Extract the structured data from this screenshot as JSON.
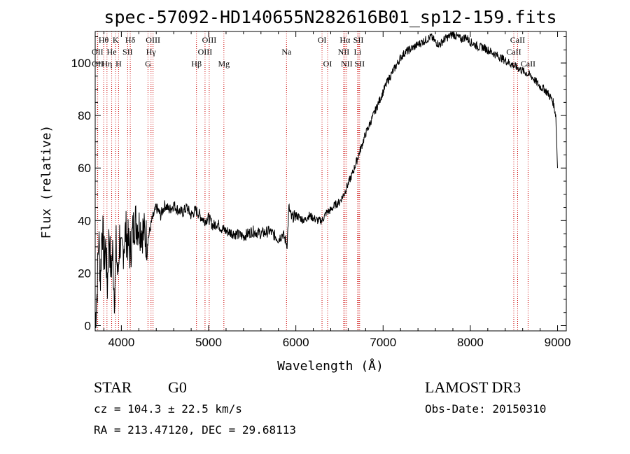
{
  "chart_data": {
    "type": "line",
    "title": "spec-57092-HD140655N282616B01_sp12-159.fits",
    "xlabel": "Wavelength (Å)",
    "ylabel": "Flux (relative)",
    "xlim": [
      3700,
      9100
    ],
    "ylim": [
      -2,
      112
    ],
    "xticks": [
      4000,
      5000,
      6000,
      7000,
      8000,
      9000
    ],
    "yticks": [
      0,
      20,
      40,
      60,
      80,
      100
    ],
    "series": [
      {
        "name": "flux",
        "x": [
          3700,
          3720,
          3740,
          3760,
          3780,
          3800,
          3820,
          3840,
          3860,
          3880,
          3900,
          3920,
          3940,
          3960,
          3980,
          4000,
          4050,
          4100,
          4150,
          4200,
          4250,
          4300,
          4350,
          4400,
          4450,
          4500,
          4550,
          4600,
          4650,
          4700,
          4750,
          4800,
          4850,
          4900,
          4950,
          5000,
          5050,
          5100,
          5150,
          5200,
          5300,
          5400,
          5500,
          5600,
          5700,
          5800,
          5850,
          5900,
          5920,
          5950,
          6000,
          6050,
          6100,
          6150,
          6200,
          6250,
          6300,
          6350,
          6400,
          6450,
          6500,
          6550,
          6600,
          6650,
          6700,
          6750,
          6800,
          6850,
          6900,
          6950,
          7000,
          7050,
          7100,
          7150,
          7200,
          7250,
          7300,
          7350,
          7400,
          7450,
          7500,
          7550,
          7600,
          7650,
          7700,
          7750,
          7800,
          7850,
          7900,
          7950,
          8000,
          8050,
          8100,
          8150,
          8200,
          8250,
          8300,
          8350,
          8400,
          8450,
          8500,
          8550,
          8600,
          8650,
          8700,
          8750,
          8800,
          8850,
          8900,
          8950,
          8980,
          9000
        ],
        "values": [
          2,
          12,
          34,
          18,
          40,
          25,
          30,
          15,
          36,
          20,
          28,
          12,
          30,
          18,
          34,
          25,
          36,
          28,
          40,
          38,
          36,
          32,
          40,
          45,
          42,
          46,
          44,
          46,
          44,
          43,
          45,
          42,
          44,
          42,
          40,
          41,
          38,
          39,
          37,
          36,
          35,
          34,
          36,
          35,
          36,
          33,
          35,
          31,
          45,
          41,
          42,
          41,
          40,
          42,
          41,
          40,
          40,
          43,
          44,
          46,
          47,
          50,
          54,
          58,
          63,
          68,
          73,
          77,
          81,
          85,
          89,
          93,
          96,
          99,
          102,
          104,
          105,
          106,
          107,
          108,
          109,
          110,
          108,
          107,
          109,
          110,
          111,
          110,
          109,
          110,
          108,
          107,
          106,
          106,
          105,
          104,
          103,
          102,
          101,
          100,
          99,
          98,
          97,
          96,
          95,
          93,
          91,
          90,
          88,
          85,
          80,
          60
        ]
      }
    ],
    "line_labels": [
      {
        "text": "Hθ",
        "w": 3797,
        "row": 0
      },
      {
        "text": "K",
        "w": 3934,
        "row": 0
      },
      {
        "text": "Hδ",
        "w": 4102,
        "row": 0
      },
      {
        "text": "OIII",
        "w": 4363,
        "row": 0
      },
      {
        "text": "OIII",
        "w": 5007,
        "row": 0
      },
      {
        "text": "OI",
        "w": 6300,
        "row": 0
      },
      {
        "text": "Hα",
        "w": 6563,
        "row": 0
      },
      {
        "text": "SII",
        "w": 6717,
        "row": 0
      },
      {
        "text": "CaII",
        "w": 8542,
        "row": 0
      },
      {
        "text": "OII",
        "w": 3727,
        "row": 1
      },
      {
        "text": "He",
        "w": 3889,
        "row": 1
      },
      {
        "text": "SII",
        "w": 4072,
        "row": 1
      },
      {
        "text": "Hγ",
        "w": 4340,
        "row": 1
      },
      {
        "text": "OIII",
        "w": 4959,
        "row": 1
      },
      {
        "text": "Na",
        "w": 5893,
        "row": 1
      },
      {
        "text": "NII",
        "w": 6548,
        "row": 1
      },
      {
        "text": "Li",
        "w": 6708,
        "row": 1
      },
      {
        "text": "CaII",
        "w": 8498,
        "row": 1
      },
      {
        "text": "OII",
        "w": 3729,
        "row": 2
      },
      {
        "text": "Hη",
        "w": 3835,
        "row": 2
      },
      {
        "text": "H",
        "w": 3968,
        "row": 2
      },
      {
        "text": "G",
        "w": 4305,
        "row": 2
      },
      {
        "text": "Hβ",
        "w": 4861,
        "row": 2
      },
      {
        "text": "Mg",
        "w": 5175,
        "row": 2
      },
      {
        "text": "OI",
        "w": 6364,
        "row": 2
      },
      {
        "text": "NII",
        "w": 6583,
        "row": 2
      },
      {
        "text": "SII",
        "w": 6731,
        "row": 2
      },
      {
        "text": "CaII",
        "w": 8662,
        "row": 2
      }
    ],
    "line_color": "#cc0000"
  },
  "info": {
    "class": "STAR",
    "subclass": "G0",
    "survey": "LAMOST DR3",
    "cz": "cz = 104.3 ± 22.5 km/s",
    "obs_date": "Obs-Date: 20150310",
    "coords": "RA = 213.47120, DEC =  29.68113"
  }
}
